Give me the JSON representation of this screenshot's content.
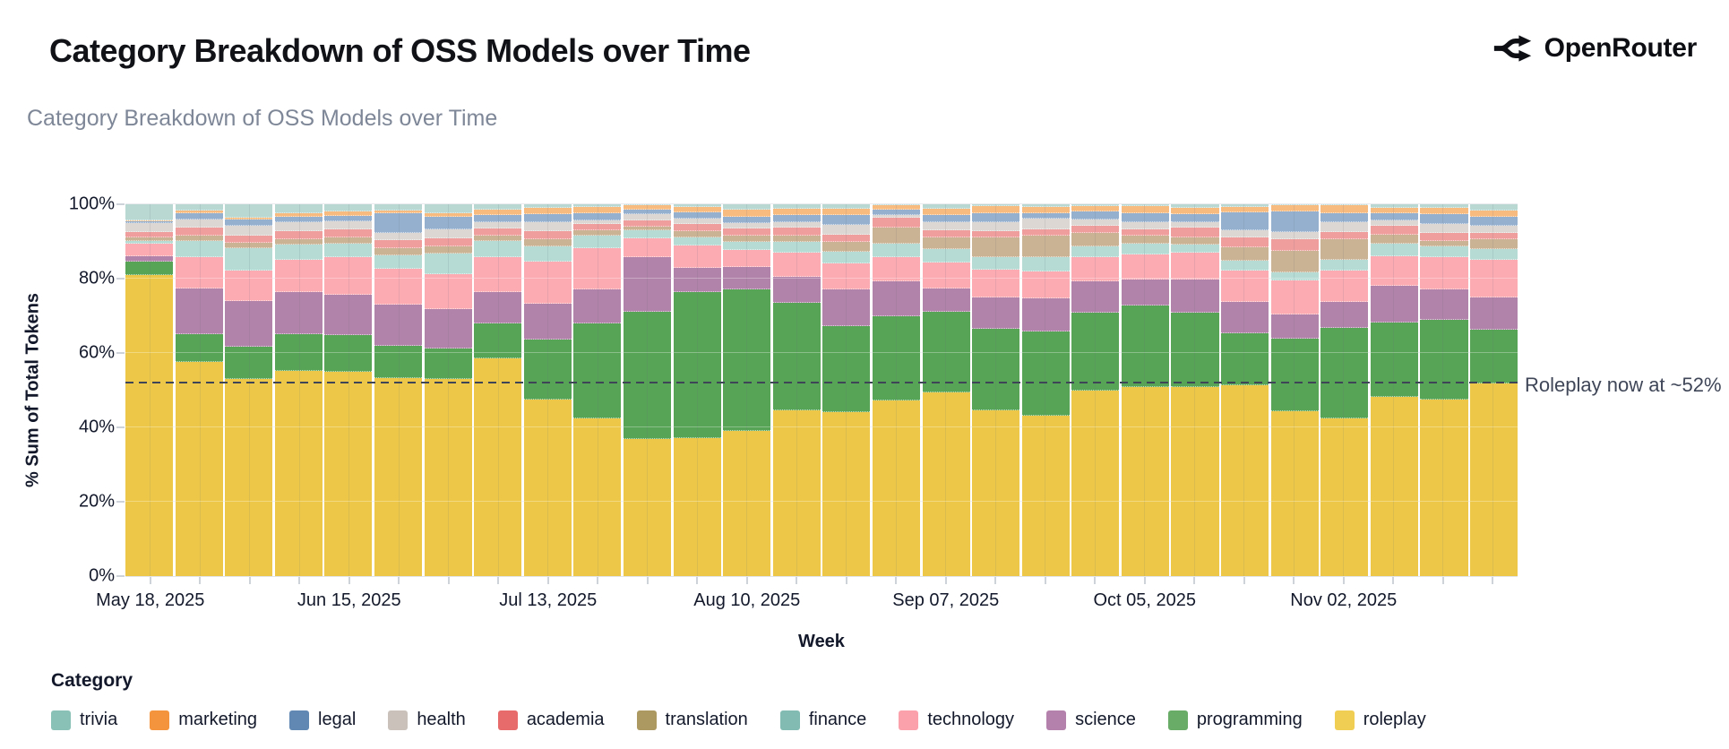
{
  "page": {
    "title": "Category Breakdown of OSS Models over Time",
    "brand": "OpenRouter",
    "chart_title": "Category Breakdown of OSS Models over Time"
  },
  "annotation": {
    "label": "Roleplay now at ~52%",
    "value_pct": 52
  },
  "axes": {
    "y_title": "% Sum of Total Tokens",
    "x_title": "Week",
    "y_ticks": [
      {
        "label": "100%",
        "value": 100
      },
      {
        "label": "80%",
        "value": 80
      },
      {
        "label": "60%",
        "value": 60
      },
      {
        "label": "40%",
        "value": 40
      },
      {
        "label": "20%",
        "value": 20
      },
      {
        "label": "0%",
        "value": 0
      }
    ],
    "x_ticks": [
      {
        "label": "May 18, 2025",
        "index": 0
      },
      {
        "label": "Jun 15, 2025",
        "index": 4
      },
      {
        "label": "Jul 13, 2025",
        "index": 8
      },
      {
        "label": "Aug 10, 2025",
        "index": 12
      },
      {
        "label": "Sep 07, 2025",
        "index": 16
      },
      {
        "label": "Oct 05, 2025",
        "index": 20
      },
      {
        "label": "Nov 02, 2025",
        "index": 24
      }
    ]
  },
  "legend": {
    "title": "Category"
  },
  "chart_data": {
    "type": "bar",
    "stacked": true,
    "title": "Category Breakdown of OSS Models over Time",
    "xlabel": "Week",
    "ylabel": "% Sum of Total Tokens",
    "ylim": [
      0,
      100
    ],
    "grid": true,
    "legend_position": "bottom",
    "dashed_line_y": 52,
    "x": [
      "May 18, 2025",
      "May 25, 2025",
      "Jun 01, 2025",
      "Jun 08, 2025",
      "Jun 15, 2025",
      "Jun 22, 2025",
      "Jun 29, 2025",
      "Jul 06, 2025",
      "Jul 13, 2025",
      "Jul 20, 2025",
      "Jul 27, 2025",
      "Aug 03, 2025",
      "Aug 10, 2025",
      "Aug 17, 2025",
      "Aug 24, 2025",
      "Aug 31, 2025",
      "Sep 07, 2025",
      "Sep 14, 2025",
      "Sep 21, 2025",
      "Sep 28, 2025",
      "Oct 05, 2025",
      "Oct 12, 2025",
      "Oct 19, 2025",
      "Oct 26, 2025",
      "Nov 02, 2025",
      "Nov 09, 2025",
      "Nov 16, 2025",
      "Nov 23, 2025"
    ],
    "stack_order_bottom_to_top": [
      "roleplay",
      "programming",
      "science",
      "technology",
      "finance",
      "translation",
      "academia",
      "health",
      "legal",
      "marketing",
      "trivia"
    ],
    "series": [
      {
        "name": "trivia",
        "color": "#7ab8ac",
        "fill": "#b8d8d1",
        "values": [
          4.3,
          1.7,
          3.6,
          2.5,
          2.0,
          1.7,
          2.5,
          1.4,
          1.0,
          0.8,
          0.3,
          0.7,
          1.5,
          1.1,
          1.2,
          0.3,
          1.2,
          0.4,
          0.7,
          0.4,
          0.4,
          1.0,
          0.6,
          0.2,
          0.3,
          1.0,
          1.0,
          1.7
        ]
      },
      {
        "name": "marketing",
        "color": "#f28522",
        "fill": "#f7bb80",
        "values": [
          0.3,
          0.6,
          0.5,
          0.8,
          1.0,
          0.8,
          0.8,
          1.6,
          1.6,
          1.6,
          1.1,
          1.5,
          1.8,
          1.8,
          1.6,
          1.1,
          1.6,
          1.9,
          1.8,
          1.4,
          1.9,
          1.6,
          1.6,
          1.8,
          2.2,
          1.4,
          1.7,
          1.6
        ]
      },
      {
        "name": "legal",
        "color": "#4a77a8",
        "fill": "#95b0ce",
        "values": [
          0.4,
          1.8,
          1.6,
          1.6,
          1.6,
          5.2,
          3.5,
          1.8,
          2.2,
          1.8,
          1.3,
          1.6,
          1.7,
          1.8,
          2.8,
          1.4,
          2.0,
          2.6,
          1.4,
          2.4,
          2.6,
          2.2,
          4.8,
          5.5,
          2.4,
          1.9,
          2.5,
          2.4
        ]
      },
      {
        "name": "health",
        "color": "#c2b8b0",
        "fill": "#ddd7d3",
        "values": [
          2.5,
          2.2,
          2.6,
          2.2,
          2.1,
          2.0,
          2.4,
          1.8,
          2.4,
          1.2,
          1.6,
          1.6,
          1.6,
          1.6,
          2.6,
          0.8,
          2.2,
          2.2,
          2.8,
          1.5,
          1.8,
          1.4,
          1.8,
          1.8,
          2.6,
          1.5,
          2.4,
          2.0
        ]
      },
      {
        "name": "academia",
        "color": "#e45756",
        "fill": "#f09e9d",
        "values": [
          1.5,
          2.2,
          2.0,
          2.2,
          2.2,
          2.0,
          2.2,
          1.9,
          2.2,
          1.5,
          1.8,
          1.8,
          1.9,
          2.1,
          2.0,
          2.6,
          1.9,
          1.8,
          1.6,
          2.0,
          1.8,
          2.6,
          2.7,
          3.2,
          2.0,
          2.4,
          2.2,
          1.8
        ]
      },
      {
        "name": "translation",
        "color": "#a08b4c",
        "fill": "#c9b394",
        "values": [
          0.8,
          1.4,
          1.4,
          1.6,
          1.6,
          2.0,
          1.8,
          1.3,
          1.8,
          1.4,
          0.8,
          1.6,
          1.6,
          1.6,
          2.6,
          4.5,
          3.1,
          5.4,
          6.0,
          3.6,
          2.2,
          2.0,
          3.6,
          5.8,
          5.5,
          2.4,
          1.5,
          2.6
        ]
      },
      {
        "name": "finance",
        "color": "#70b2a7",
        "fill": "#b5dbd4",
        "values": [
          0.7,
          4.2,
          6.2,
          4.0,
          3.6,
          3.6,
          5.5,
          4.3,
          4.3,
          3.5,
          2.2,
          2.2,
          2.2,
          2.9,
          3.2,
          3.4,
          3.6,
          3.2,
          3.7,
          2.8,
          2.9,
          2.2,
          2.7,
          2.2,
          2.8,
          3.4,
          2.8,
          2.8
        ]
      },
      {
        "name": "technology",
        "color": "#fb949f",
        "fill": "#fcabb3",
        "values": [
          3.5,
          8.5,
          8.2,
          8.7,
          10.3,
          9.7,
          9.4,
          9.5,
          11.2,
          11.0,
          5.1,
          6.1,
          4.6,
          6.5,
          7.0,
          6.5,
          7.0,
          7.5,
          7.4,
          6.7,
          6.6,
          7.2,
          8.4,
          9.0,
          8.4,
          8.0,
          8.9,
          10.1
        ]
      },
      {
        "name": "science",
        "color": "#aa70a2",
        "fill": "#b183aa",
        "values": [
          1.5,
          12.4,
          12.3,
          11.4,
          10.8,
          11.1,
          10.7,
          8.4,
          9.6,
          9.2,
          14.6,
          6.4,
          6.0,
          7.0,
          9.7,
          9.4,
          6.3,
          8.4,
          8.7,
          8.4,
          7.0,
          9.0,
          8.6,
          6.7,
          7.1,
          9.8,
          8.0,
          8.8
        ]
      },
      {
        "name": "programming",
        "color": "#54a053",
        "fill": "#58a457",
        "values": [
          3.5,
          7.5,
          8.6,
          9.7,
          9.8,
          8.6,
          8.2,
          9.4,
          16.2,
          25.7,
          34.3,
          39.3,
          38.1,
          29.1,
          23.3,
          22.7,
          21.7,
          21.9,
          22.8,
          20.8,
          22.0,
          19.9,
          13.9,
          19.5,
          24.4,
          20.1,
          21.5,
          14.3
        ]
      },
      {
        "name": "roleplay",
        "color": "#eec73c",
        "fill": "#edc848",
        "values": [
          81.0,
          57.5,
          53.0,
          55.3,
          55.0,
          53.3,
          53.0,
          58.6,
          47.5,
          42.3,
          36.9,
          37.2,
          39.0,
          44.5,
          44.0,
          47.3,
          49.4,
          44.7,
          43.1,
          50.0,
          50.8,
          50.9,
          51.3,
          44.3,
          42.3,
          48.1,
          47.5,
          51.9
        ]
      }
    ]
  }
}
